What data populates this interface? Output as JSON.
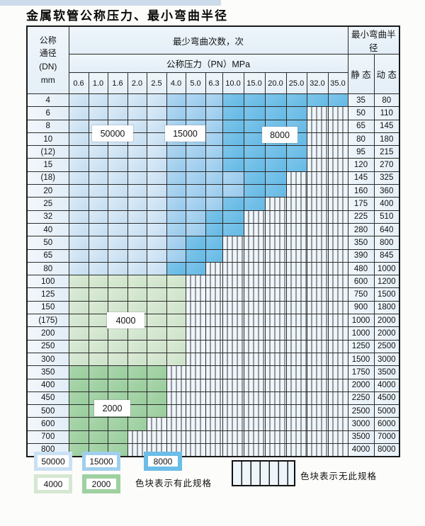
{
  "title": "金属软管公称压力、最小弯曲半径",
  "colors": {
    "cycles_50000": "#cde3f4",
    "cycles_15000": "#a0cfee",
    "cycles_8000": "#6cbde7",
    "cycles_4000": "#d5e7d1",
    "cycles_2000": "#9ed0a0",
    "plain_cell": "#eaf2fa",
    "grid_line": "#2b2b2b"
  },
  "table": {
    "header": {
      "dn_label_lines": [
        "公称",
        "通径",
        "(DN)",
        "mm"
      ],
      "cycles_label": "最少弯曲次数，次",
      "pressure_label": "公称压力（PN）MPa",
      "radius_label": "最小弯曲半径",
      "static_label": "静 态",
      "dynamic_label": "动 态",
      "pressures": [
        "0.6",
        "1.0",
        "1.6",
        "2.0",
        "2.5",
        "4.0",
        "5.0",
        "6.3",
        "10.0",
        "15.0",
        "20.0",
        "25.0",
        "32.0",
        "35.0"
      ]
    },
    "cell_legend_map": {
      "b1": "50000",
      "b2": "15000",
      "b3": "8000",
      "g1": "4000",
      "g2": "2000",
      "x": "无此规格"
    },
    "rows": [
      {
        "dn": "4",
        "static": "35",
        "dynamic": "80",
        "cells": [
          "b1",
          "b1",
          "b1",
          "b1",
          "b1",
          "b2",
          "b2",
          "b2",
          "b3",
          "b3",
          "b3",
          "b3",
          "b3",
          "b3"
        ]
      },
      {
        "dn": "6",
        "static": "50",
        "dynamic": "110",
        "cells": [
          "b1",
          "b1",
          "b1",
          "b1",
          "b1",
          "b2",
          "b2",
          "b2",
          "b3",
          "b3",
          "b3",
          "b3",
          "x",
          "x"
        ]
      },
      {
        "dn": "8",
        "static": "65",
        "dynamic": "145",
        "cells": [
          "b1",
          "b1",
          "b1",
          "b1",
          "b1",
          "b2",
          "b2",
          "b2",
          "b3",
          "b3",
          "b3",
          "b3",
          "x",
          "x"
        ]
      },
      {
        "dn": "10",
        "static": "80",
        "dynamic": "180",
        "cells": [
          "b1",
          "b1",
          "b1",
          "b1",
          "b1",
          "b2",
          "b2",
          "b2",
          "b3",
          "b3",
          "b3",
          "b3",
          "x",
          "x"
        ]
      },
      {
        "dn": "(12)",
        "static": "95",
        "dynamic": "215",
        "cells": [
          "b1",
          "b1",
          "b1",
          "b1",
          "b1",
          "b2",
          "b2",
          "b2",
          "b3",
          "b3",
          "b3",
          "b3",
          "x",
          "x"
        ]
      },
      {
        "dn": "15",
        "static": "120",
        "dynamic": "270",
        "cells": [
          "b1",
          "b1",
          "b1",
          "b1",
          "b1",
          "b2",
          "b2",
          "b2",
          "b3",
          "b3",
          "b3",
          "b3",
          "x",
          "x"
        ]
      },
      {
        "dn": "(18)",
        "static": "145",
        "dynamic": "325",
        "cells": [
          "b1",
          "b1",
          "b1",
          "b1",
          "b1",
          "b2",
          "b2",
          "b2",
          "b2",
          "b3",
          "b3",
          "x",
          "x",
          "x"
        ]
      },
      {
        "dn": "20",
        "static": "160",
        "dynamic": "360",
        "cells": [
          "b1",
          "b1",
          "b1",
          "b1",
          "b1",
          "b2",
          "b2",
          "b2",
          "b2",
          "b3",
          "b3",
          "x",
          "x",
          "x"
        ]
      },
      {
        "dn": "25",
        "static": "175",
        "dynamic": "400",
        "cells": [
          "b1",
          "b1",
          "b1",
          "b1",
          "b1",
          "b2",
          "b2",
          "b2",
          "b3",
          "b3",
          "x",
          "x",
          "x",
          "x"
        ]
      },
      {
        "dn": "32",
        "static": "225",
        "dynamic": "510",
        "cells": [
          "b1",
          "b1",
          "b1",
          "b1",
          "b1",
          "b2",
          "b2",
          "b3",
          "b3",
          "x",
          "x",
          "x",
          "x",
          "x"
        ]
      },
      {
        "dn": "40",
        "static": "280",
        "dynamic": "640",
        "cells": [
          "b1",
          "b1",
          "b1",
          "b1",
          "b1",
          "b2",
          "b2",
          "b3",
          "b3",
          "x",
          "x",
          "x",
          "x",
          "x"
        ]
      },
      {
        "dn": "50",
        "static": "350",
        "dynamic": "800",
        "cells": [
          "b1",
          "b1",
          "b1",
          "b1",
          "b1",
          "b2",
          "b3",
          "b3",
          "x",
          "x",
          "x",
          "x",
          "x",
          "x"
        ]
      },
      {
        "dn": "65",
        "static": "390",
        "dynamic": "845",
        "cells": [
          "b1",
          "b1",
          "b1",
          "b1",
          "b1",
          "b2",
          "b3",
          "b3",
          "x",
          "x",
          "x",
          "x",
          "x",
          "x"
        ]
      },
      {
        "dn": "80",
        "static": "480",
        "dynamic": "1000",
        "cells": [
          "b1",
          "b1",
          "b1",
          "b1",
          "b1",
          "b3",
          "b3",
          "x",
          "x",
          "x",
          "x",
          "x",
          "x",
          "x"
        ]
      },
      {
        "dn": "100",
        "static": "600",
        "dynamic": "1200",
        "cells": [
          "g1",
          "g1",
          "g1",
          "g1",
          "g1",
          "g1",
          "x",
          "x",
          "x",
          "x",
          "x",
          "x",
          "x",
          "x"
        ]
      },
      {
        "dn": "125",
        "static": "750",
        "dynamic": "1500",
        "cells": [
          "g1",
          "g1",
          "g1",
          "g1",
          "g1",
          "g1",
          "x",
          "x",
          "x",
          "x",
          "x",
          "x",
          "x",
          "x"
        ]
      },
      {
        "dn": "150",
        "static": "900",
        "dynamic": "1800",
        "cells": [
          "g1",
          "g1",
          "g1",
          "g1",
          "g1",
          "g1",
          "x",
          "x",
          "x",
          "x",
          "x",
          "x",
          "x",
          "x"
        ]
      },
      {
        "dn": "(175)",
        "static": "1000",
        "dynamic": "2000",
        "cells": [
          "g1",
          "g1",
          "g1",
          "g1",
          "g1",
          "g1",
          "x",
          "x",
          "x",
          "x",
          "x",
          "x",
          "x",
          "x"
        ]
      },
      {
        "dn": "200",
        "static": "1000",
        "dynamic": "2000",
        "cells": [
          "g1",
          "g1",
          "g1",
          "g1",
          "g1",
          "g1",
          "x",
          "x",
          "x",
          "x",
          "x",
          "x",
          "x",
          "x"
        ]
      },
      {
        "dn": "250",
        "static": "1250",
        "dynamic": "2500",
        "cells": [
          "g1",
          "g1",
          "g1",
          "g1",
          "g1",
          "g1",
          "x",
          "x",
          "x",
          "x",
          "x",
          "x",
          "x",
          "x"
        ]
      },
      {
        "dn": "300",
        "static": "1500",
        "dynamic": "3000",
        "cells": [
          "g1",
          "g1",
          "g1",
          "g1",
          "g1",
          "g1",
          "x",
          "x",
          "x",
          "x",
          "x",
          "x",
          "x",
          "x"
        ]
      },
      {
        "dn": "350",
        "static": "1750",
        "dynamic": "3500",
        "cells": [
          "g2",
          "g2",
          "g2",
          "g2",
          "g2",
          "x",
          "x",
          "x",
          "x",
          "x",
          "x",
          "x",
          "x",
          "x"
        ]
      },
      {
        "dn": "400",
        "static": "2000",
        "dynamic": "4000",
        "cells": [
          "g2",
          "g2",
          "g2",
          "g2",
          "g2",
          "x",
          "x",
          "x",
          "x",
          "x",
          "x",
          "x",
          "x",
          "x"
        ]
      },
      {
        "dn": "450",
        "static": "2250",
        "dynamic": "4500",
        "cells": [
          "g2",
          "g2",
          "g2",
          "g2",
          "g2",
          "x",
          "x",
          "x",
          "x",
          "x",
          "x",
          "x",
          "x",
          "x"
        ]
      },
      {
        "dn": "500",
        "static": "2500",
        "dynamic": "5000",
        "cells": [
          "g2",
          "g2",
          "g2",
          "g2",
          "g2",
          "x",
          "x",
          "x",
          "x",
          "x",
          "x",
          "x",
          "x",
          "x"
        ]
      },
      {
        "dn": "600",
        "static": "3000",
        "dynamic": "6000",
        "cells": [
          "g2",
          "g2",
          "g2",
          "g2",
          "x",
          "x",
          "x",
          "x",
          "x",
          "x",
          "x",
          "x",
          "x",
          "x"
        ]
      },
      {
        "dn": "700",
        "static": "3500",
        "dynamic": "7000",
        "cells": [
          "g2",
          "g2",
          "g2",
          "x",
          "x",
          "x",
          "x",
          "x",
          "x",
          "x",
          "x",
          "x",
          "x",
          "x"
        ]
      },
      {
        "dn": "800",
        "static": "4000",
        "dynamic": "8000",
        "cells": [
          "g2",
          "g2",
          "g2",
          "x",
          "x",
          "x",
          "x",
          "x",
          "x",
          "x",
          "x",
          "x",
          "x",
          "x"
        ]
      }
    ],
    "overlays": [
      {
        "text": "50000"
      },
      {
        "text": "15000"
      },
      {
        "text": "8000"
      },
      {
        "text": "4000"
      },
      {
        "text": "2000"
      }
    ]
  },
  "legend": {
    "swatches": [
      {
        "label": "50000"
      },
      {
        "label": "15000"
      },
      {
        "label": "8000"
      },
      {
        "label": "4000"
      },
      {
        "label": "2000"
      }
    ],
    "has_spec_text": "色块表示有此规格",
    "no_spec_text": "色块表示无此规格"
  }
}
